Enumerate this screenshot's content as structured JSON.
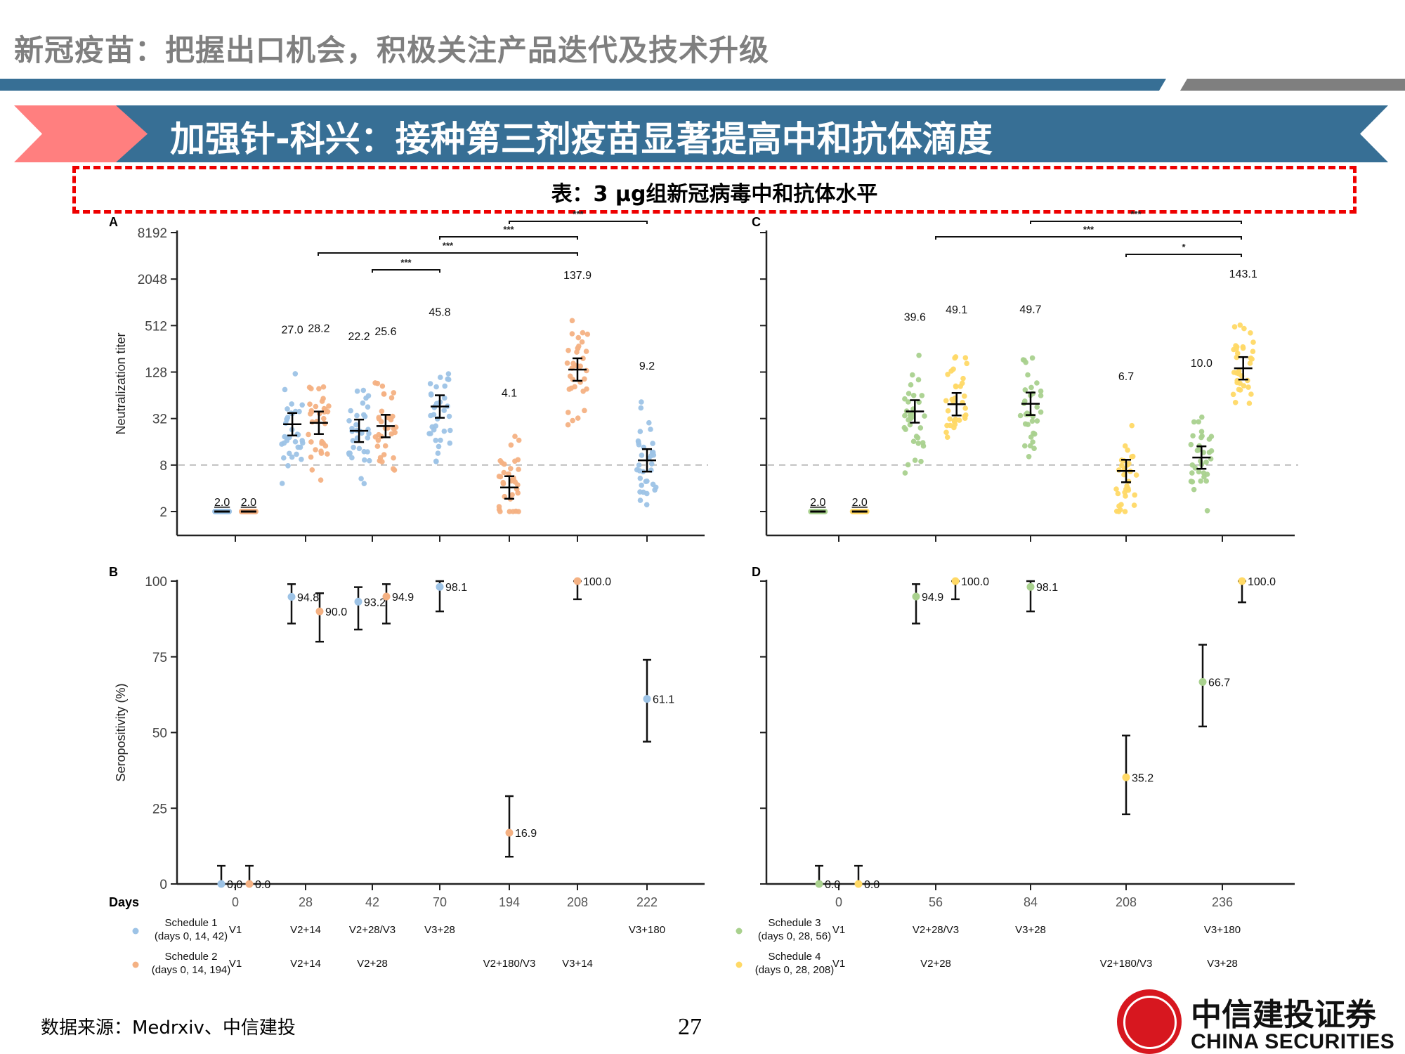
{
  "header": {
    "title": "新冠疫苗：把握出口机会，积极关注产品迭代及技术升级",
    "colors": {
      "bar_blue": "#376f95",
      "bar_gray": "#7f7f7f",
      "banner_pink": "#ff7f7f",
      "dash_red": "#ee0000"
    }
  },
  "banner": {
    "title": "加强针-科兴：接种第三剂疫苗显著提高中和抗体滴度"
  },
  "table_caption": "表：3 μg组新冠病毒中和抗体水平",
  "footer": {
    "source": "数据来源：Medrxiv、中信建投",
    "page_number": "27",
    "logo_cn": "中信建投证券",
    "logo_en": "CHINA SECURITIES"
  },
  "colors": {
    "schedule1": "#9dc3e6",
    "schedule2": "#f4b183",
    "schedule3": "#a9d18e",
    "schedule4": "#ffd966",
    "axis": "#222222",
    "threshold": "#b0b0b0"
  },
  "legend": {
    "days_label": "Days",
    "left": [
      {
        "name": "Schedule 1",
        "detail": "(days 0, 14, 42)",
        "color_key": "schedule1",
        "labels": [
          "V1",
          "V2+14",
          "V2+28/V3",
          "V3+28",
          "",
          "",
          "V3+180"
        ]
      },
      {
        "name": "Schedule 2",
        "detail": "(days 0, 14, 194)",
        "color_key": "schedule2",
        "labels": [
          "V1",
          "V2+14",
          "V2+28",
          "",
          "V2+180/V3",
          "V3+14",
          ""
        ]
      }
    ],
    "right": [
      {
        "name": "Schedule 3",
        "detail": "(days 0, 28, 56)",
        "color_key": "schedule3",
        "labels": [
          "V1",
          "V2+28/V3",
          "V3+28",
          "",
          "V3+180"
        ]
      },
      {
        "name": "Schedule 4",
        "detail": "(days 0, 28, 208)",
        "color_key": "schedule4",
        "labels": [
          "V1",
          "V2+28",
          "",
          "V2+180/V3",
          "V3+28"
        ]
      }
    ]
  },
  "chart_data": [
    {
      "panel": "A",
      "type": "scatter",
      "title": "",
      "ylabel": "Neutralization titer",
      "xlabel": "Days",
      "yscale": "log2",
      "yticks": [
        2,
        8,
        32,
        128,
        512,
        2048,
        8192
      ],
      "ylim": [
        1,
        8192
      ],
      "threshold": 8,
      "categories": [
        "0",
        "28",
        "42",
        "70",
        "194",
        "208",
        "222"
      ],
      "series": [
        {
          "name": "Schedule 1 (days 0, 14, 42)",
          "color_key": "schedule1",
          "x": [
            "0",
            "28",
            "42",
            "70",
            "222"
          ],
          "gmt": [
            2.0,
            27.0,
            22.2,
            45.8,
            9.2
          ]
        },
        {
          "name": "Schedule 2 (days 0, 14, 194)",
          "color_key": "schedule2",
          "x": [
            "0",
            "28",
            "42",
            "194",
            "208"
          ],
          "gmt": [
            2.0,
            28.2,
            25.6,
            4.1,
            137.9
          ]
        }
      ],
      "significance": [
        {
          "from": "28",
          "to": "208",
          "label": "***"
        },
        {
          "from": "42",
          "to": "70",
          "label": "***"
        },
        {
          "from": "70",
          "to": "208",
          "label": "***"
        },
        {
          "from": "194",
          "to": "222",
          "label": "***"
        }
      ]
    },
    {
      "panel": "B",
      "type": "scatter",
      "title": "",
      "ylabel": "Seropositivity (%)",
      "xlabel": "Days",
      "yticks": [
        0,
        25,
        50,
        75,
        100
      ],
      "ylim": [
        0,
        100
      ],
      "categories": [
        "0",
        "28",
        "42",
        "70",
        "194",
        "208",
        "222"
      ],
      "series": [
        {
          "name": "Schedule 1 (days 0, 14, 42)",
          "color_key": "schedule1",
          "x": [
            "0",
            "28",
            "42",
            "70",
            "222"
          ],
          "values": [
            0.0,
            94.8,
            93.2,
            98.1,
            61.1
          ],
          "ci_low": [
            0,
            86,
            84,
            90,
            47
          ],
          "ci_high": [
            6,
            99,
            98,
            100,
            74
          ]
        },
        {
          "name": "Schedule 2 (days 0, 14, 194)",
          "color_key": "schedule2",
          "x": [
            "0",
            "28",
            "42",
            "194",
            "208"
          ],
          "values": [
            0.0,
            90.0,
            94.9,
            16.9,
            100.0
          ],
          "ci_low": [
            0,
            80,
            86,
            9,
            94
          ],
          "ci_high": [
            6,
            96,
            99,
            29,
            100
          ]
        }
      ]
    },
    {
      "panel": "C",
      "type": "scatter",
      "title": "",
      "ylabel": "",
      "xlabel": "Days",
      "yscale": "log2",
      "yticks": [
        2,
        8,
        32,
        128,
        512,
        2048,
        8192
      ],
      "ylim": [
        1,
        8192
      ],
      "threshold": 8,
      "categories": [
        "0",
        "56",
        "84",
        "208",
        "236"
      ],
      "series": [
        {
          "name": "Schedule 3 (days 0, 28, 56)",
          "color_key": "schedule3",
          "x": [
            "0",
            "56",
            "84",
            "236"
          ],
          "gmt": [
            2.0,
            39.6,
            49.7,
            10.0
          ]
        },
        {
          "name": "Schedule 4 (days 0, 28, 208)",
          "color_key": "schedule4",
          "x": [
            "0",
            "56",
            "208",
            "236"
          ],
          "gmt": [
            2.0,
            49.1,
            6.7,
            143.1
          ]
        }
      ],
      "significance": [
        {
          "from": "56",
          "to": "236",
          "label": "***"
        },
        {
          "from": "84",
          "to": "236",
          "label": "***"
        },
        {
          "from": "208",
          "to": "236",
          "label": "*"
        }
      ]
    },
    {
      "panel": "D",
      "type": "scatter",
      "title": "",
      "ylabel": "",
      "xlabel": "Days",
      "yticks": [
        0,
        25,
        50,
        75,
        100
      ],
      "ylim": [
        0,
        100
      ],
      "categories": [
        "0",
        "56",
        "84",
        "208",
        "236"
      ],
      "series": [
        {
          "name": "Schedule 3 (days 0, 28, 56)",
          "color_key": "schedule3",
          "x": [
            "0",
            "56",
            "84",
            "236"
          ],
          "values": [
            0.0,
            94.9,
            98.1,
            66.7
          ],
          "ci_low": [
            0,
            86,
            90,
            52
          ],
          "ci_high": [
            6,
            99,
            100,
            79
          ]
        },
        {
          "name": "Schedule 4 (days 0, 28, 208)",
          "color_key": "schedule4",
          "x": [
            "0",
            "56",
            "208",
            "236"
          ],
          "values": [
            0.0,
            100.0,
            35.2,
            100.0
          ],
          "ci_low": [
            0,
            94,
            23,
            93
          ],
          "ci_high": [
            6,
            100,
            49,
            100
          ]
        }
      ]
    }
  ]
}
